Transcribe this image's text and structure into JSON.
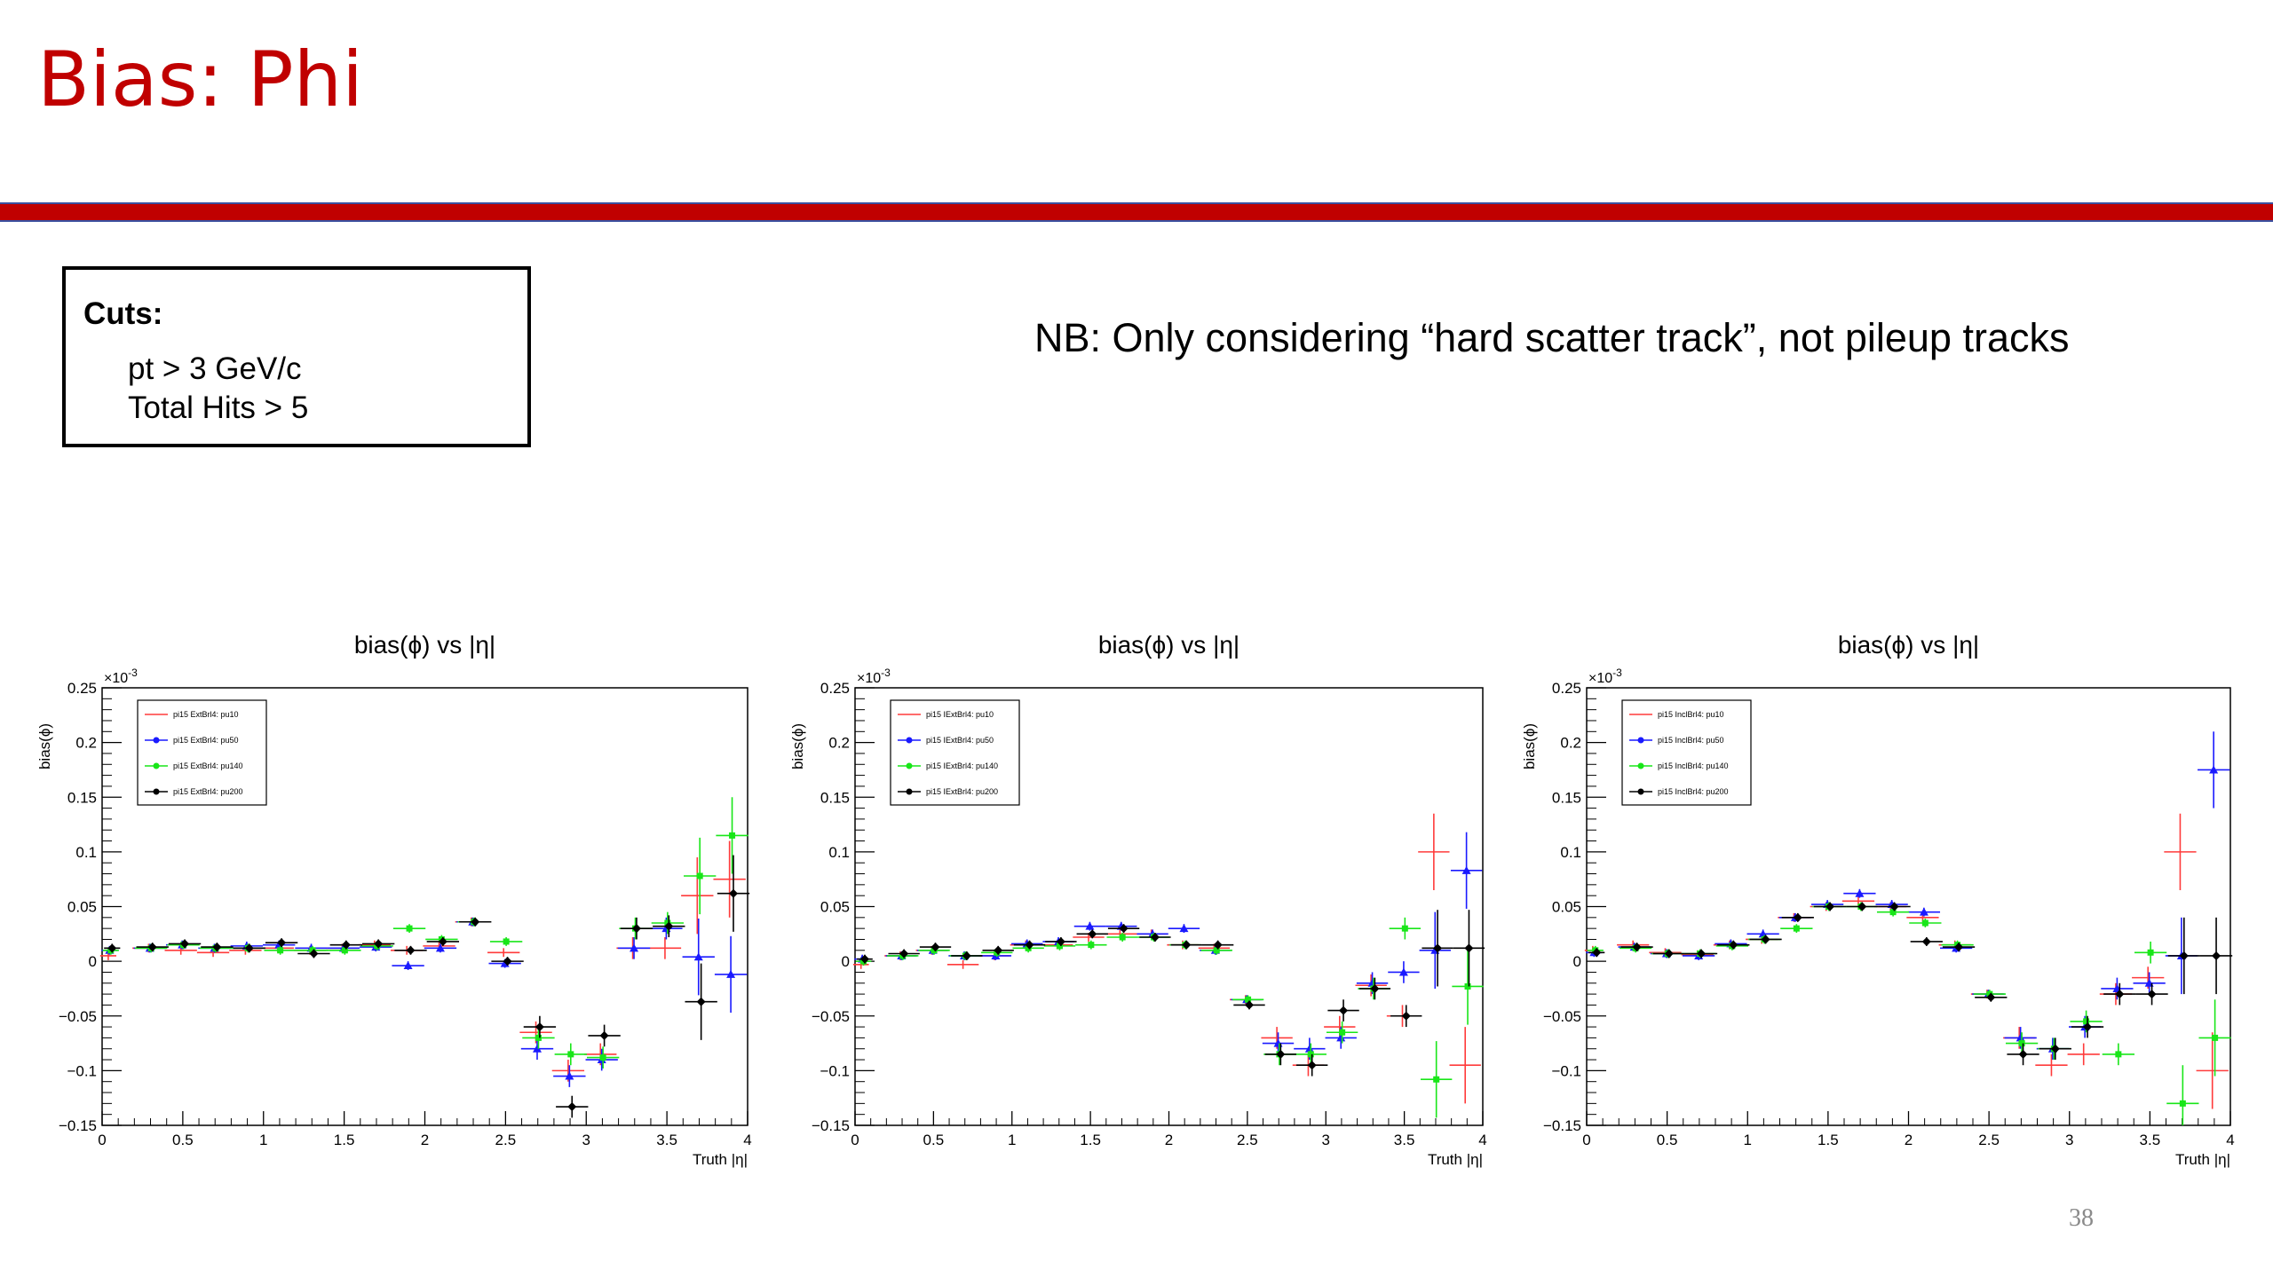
{
  "slide": {
    "title": "Bias: Phi",
    "note": "NB: Only considering “hard scatter track”, not pileup tracks",
    "page_number": "38",
    "title_color": "#c00000",
    "bar_color": "#c00000"
  },
  "cuts": {
    "title": "Cuts:",
    "lines": [
      "pt > 3 GeV/c",
      "Total Hits > 5"
    ]
  },
  "series_colors": [
    "#ff3b3b",
    "#1a1aff",
    "#19e619",
    "#000000"
  ],
  "chart_data": [
    {
      "type": "scatter",
      "title": "bias(ϕ) vs |η|",
      "xlabel": "Truth |η|",
      "ylabel": "bias(ϕ)",
      "yexponent": "×10",
      "yexponent_power": "-3",
      "xlim": [
        0,
        4
      ],
      "ylim": [
        -0.15,
        0.25
      ],
      "xticks": [
        "0",
        "0.5",
        "1",
        "1.5",
        "2",
        "2.5",
        "3",
        "3.5",
        "4"
      ],
      "yticks": [
        "−0.15",
        "−0.1",
        "−0.05",
        "0",
        "0.05",
        "0.1",
        "0.15",
        "0.2",
        "0.25"
      ],
      "legend_position": "top-left",
      "x": [
        0.05,
        0.3,
        0.5,
        0.7,
        0.9,
        1.1,
        1.3,
        1.5,
        1.7,
        1.9,
        2.1,
        2.3,
        2.5,
        2.7,
        2.9,
        3.1,
        3.3,
        3.5,
        3.7,
        3.9
      ],
      "series": [
        {
          "name": "pi15 ExtBrl4: pu10",
          "values": [
            0.005,
            0.012,
            0.01,
            0.008,
            0.01,
            0.012,
            0.01,
            0.012,
            0.015,
            0.01,
            0.014,
            0.036,
            0.008,
            -0.065,
            -0.1,
            -0.085,
            0.012,
            0.012,
            0.06,
            0.075
          ]
        },
        {
          "name": "pi15 ExtBrl4: pu50",
          "values": [
            0.01,
            0.012,
            0.015,
            0.012,
            0.014,
            0.015,
            0.012,
            0.012,
            0.013,
            -0.004,
            0.012,
            0.036,
            -0.002,
            -0.08,
            -0.105,
            -0.09,
            0.012,
            0.03,
            0.004,
            -0.012
          ]
        },
        {
          "name": "pi15 ExtBrl4: pu140",
          "values": [
            0.01,
            0.012,
            0.015,
            0.012,
            0.012,
            0.01,
            0.01,
            0.01,
            0.014,
            0.03,
            0.02,
            0.036,
            0.018,
            -0.07,
            -0.085,
            -0.088,
            0.03,
            0.035,
            0.078,
            0.115
          ]
        },
        {
          "name": "pi15 ExtBrl4: pu200",
          "values": [
            0.012,
            0.013,
            0.016,
            0.013,
            0.012,
            0.017,
            0.007,
            0.015,
            0.016,
            0.01,
            0.018,
            0.036,
            0.0,
            -0.06,
            -0.133,
            -0.068,
            0.03,
            0.032,
            -0.037,
            0.062
          ]
        }
      ]
    },
    {
      "type": "scatter",
      "title": "bias(ϕ) vs |η|",
      "xlabel": "Truth |η|",
      "ylabel": "bias(ϕ)",
      "yexponent": "×10",
      "yexponent_power": "-3",
      "xlim": [
        0,
        4
      ],
      "ylim": [
        -0.15,
        0.25
      ],
      "xticks": [
        "0",
        "0.5",
        "1",
        "1.5",
        "2",
        "2.5",
        "3",
        "3.5",
        "4"
      ],
      "yticks": [
        "−0.15",
        "−0.1",
        "−0.05",
        "0",
        "0.05",
        "0.1",
        "0.15",
        "0.2",
        "0.25"
      ],
      "legend_position": "top-left",
      "x": [
        0.05,
        0.3,
        0.5,
        0.7,
        0.9,
        1.1,
        1.3,
        1.5,
        1.7,
        1.9,
        2.1,
        2.3,
        2.5,
        2.7,
        2.9,
        3.1,
        3.3,
        3.5,
        3.7,
        3.9
      ],
      "series": [
        {
          "name": "pi15 IExtBrl4: pu10",
          "values": [
            -0.003,
            0.005,
            0.01,
            -0.003,
            0.005,
            0.015,
            0.015,
            0.022,
            0.025,
            0.025,
            0.015,
            0.012,
            -0.035,
            -0.07,
            -0.095,
            -0.06,
            -0.022,
            -0.05,
            0.1,
            -0.095
          ]
        },
        {
          "name": "pi15 IExtBrl4: pu50",
          "values": [
            0.002,
            0.005,
            0.01,
            0.005,
            0.005,
            0.016,
            0.018,
            0.032,
            0.032,
            0.025,
            0.03,
            0.01,
            -0.035,
            -0.075,
            -0.08,
            -0.07,
            -0.02,
            -0.01,
            0.01,
            0.083
          ]
        },
        {
          "name": "pi15 IExtBrl4: pu140",
          "values": [
            0.0,
            0.005,
            0.01,
            0.005,
            0.008,
            0.012,
            0.014,
            0.015,
            0.022,
            0.022,
            0.015,
            0.01,
            -0.035,
            -0.085,
            -0.085,
            -0.065,
            -0.025,
            0.03,
            -0.108,
            -0.023
          ]
        },
        {
          "name": "pi15 IExtBrl4: pu200",
          "values": [
            0.002,
            0.007,
            0.013,
            0.005,
            0.01,
            0.015,
            0.018,
            0.025,
            0.03,
            0.022,
            0.015,
            0.015,
            -0.04,
            -0.085,
            -0.095,
            -0.045,
            -0.025,
            -0.05,
            0.012,
            0.012
          ]
        }
      ]
    },
    {
      "type": "scatter",
      "title": "bias(ϕ) vs |η|",
      "xlabel": "Truth |η|",
      "ylabel": "bias(ϕ)",
      "yexponent": "×10",
      "yexponent_power": "-3",
      "xlim": [
        0,
        4
      ],
      "ylim": [
        -0.15,
        0.25
      ],
      "xticks": [
        "0",
        "0.5",
        "1",
        "1.5",
        "2",
        "2.5",
        "3",
        "3.5",
        "4"
      ],
      "yticks": [
        "−0.15",
        "−0.1",
        "−0.05",
        "0",
        "0.05",
        "0.1",
        "0.15",
        "0.2",
        "0.25"
      ],
      "legend_position": "top-left",
      "x": [
        0.05,
        0.3,
        0.5,
        0.7,
        0.9,
        1.1,
        1.3,
        1.5,
        1.7,
        1.9,
        2.1,
        2.3,
        2.5,
        2.7,
        2.9,
        3.1,
        3.3,
        3.5,
        3.7,
        3.9
      ],
      "series": [
        {
          "name": "pi15 InclBrl4: pu10",
          "values": [
            0.01,
            0.015,
            0.008,
            0.006,
            0.015,
            0.02,
            0.04,
            0.05,
            0.055,
            0.05,
            0.04,
            0.015,
            -0.03,
            -0.07,
            -0.095,
            -0.085,
            -0.03,
            -0.015,
            0.1,
            -0.1
          ]
        },
        {
          "name": "pi15 InclBrl4: pu50",
          "values": [
            0.008,
            0.013,
            0.007,
            0.005,
            0.016,
            0.025,
            0.04,
            0.052,
            0.062,
            0.052,
            0.045,
            0.012,
            -0.03,
            -0.07,
            -0.08,
            -0.06,
            -0.025,
            -0.02,
            0.005,
            0.175
          ]
        },
        {
          "name": "pi15 InclBrl4: pu140",
          "values": [
            0.01,
            0.012,
            0.007,
            0.007,
            0.014,
            0.02,
            0.03,
            0.05,
            0.05,
            0.045,
            0.035,
            0.015,
            -0.03,
            -0.075,
            -0.08,
            -0.055,
            -0.085,
            0.008,
            -0.13,
            -0.07
          ]
        },
        {
          "name": "pi15 InclBrl4: pu200",
          "values": [
            0.008,
            0.013,
            0.007,
            0.007,
            0.015,
            0.02,
            0.04,
            0.05,
            0.05,
            0.05,
            0.018,
            0.013,
            -0.033,
            -0.085,
            -0.08,
            -0.06,
            -0.03,
            -0.03,
            0.005,
            0.005
          ]
        }
      ]
    }
  ]
}
